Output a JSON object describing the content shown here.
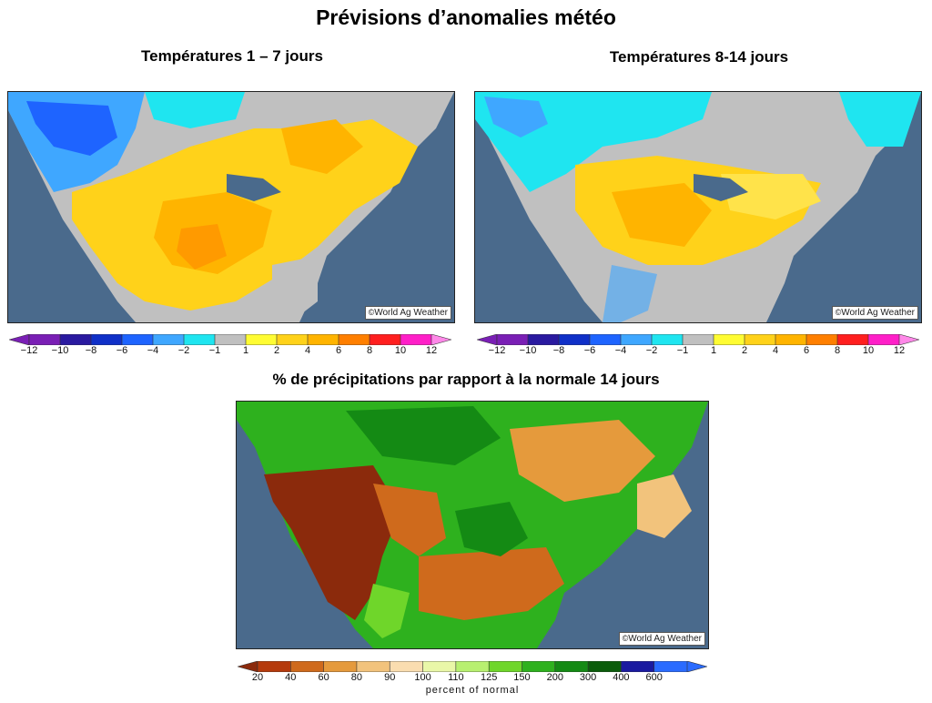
{
  "title": "Prévisions d’anomalies météo",
  "panels": {
    "temp_1_7": {
      "title": "Températures 1 – 7 jours",
      "credit": "World Ag Weather"
    },
    "temp_8_14": {
      "title": "Températures 8-14 jours",
      "credit": "World Ag Weather"
    },
    "precip_14": {
      "title": "% de précipitations par rapport à la normale 14 jours",
      "credit": "World Ag Weather"
    }
  },
  "temp_legend": {
    "labels": [
      "−12",
      "−10",
      "−8",
      "−6",
      "−4",
      "−2",
      "−1",
      "1",
      "2",
      "4",
      "6",
      "8",
      "10",
      "12"
    ],
    "colors": [
      "#7a1fb5",
      "#2a1aa0",
      "#1030c8",
      "#1e64ff",
      "#3fa7ff",
      "#1fe5f0",
      "#c0c0c0",
      "#fffc33",
      "#ffd21a",
      "#ffb400",
      "#ff7f00",
      "#ff1f1f",
      "#ff1fc8"
    ],
    "low_end_color": "#7a1fb5",
    "high_end_color": "#ff88e8"
  },
  "precip_legend": {
    "labels": [
      "20",
      "40",
      "60",
      "80",
      "90",
      "100",
      "110",
      "125",
      "150",
      "200",
      "300",
      "400",
      "600"
    ],
    "colors": [
      "#b53a0c",
      "#cf6a1c",
      "#e59a3c",
      "#f2c37c",
      "#faddb0",
      "#e9f7a8",
      "#b8f070",
      "#6fd62a",
      "#2eb11e",
      "#148a14",
      "#0b5c0b",
      "#1a1aa0",
      "#2a6bff"
    ],
    "low_end_color": "#8b2a0c",
    "high_end_color": "#2a6bff",
    "unit": "percent of normal"
  },
  "colors": {
    "ocean": "#4a6a8c",
    "land_gray": "#c0c0c0"
  }
}
